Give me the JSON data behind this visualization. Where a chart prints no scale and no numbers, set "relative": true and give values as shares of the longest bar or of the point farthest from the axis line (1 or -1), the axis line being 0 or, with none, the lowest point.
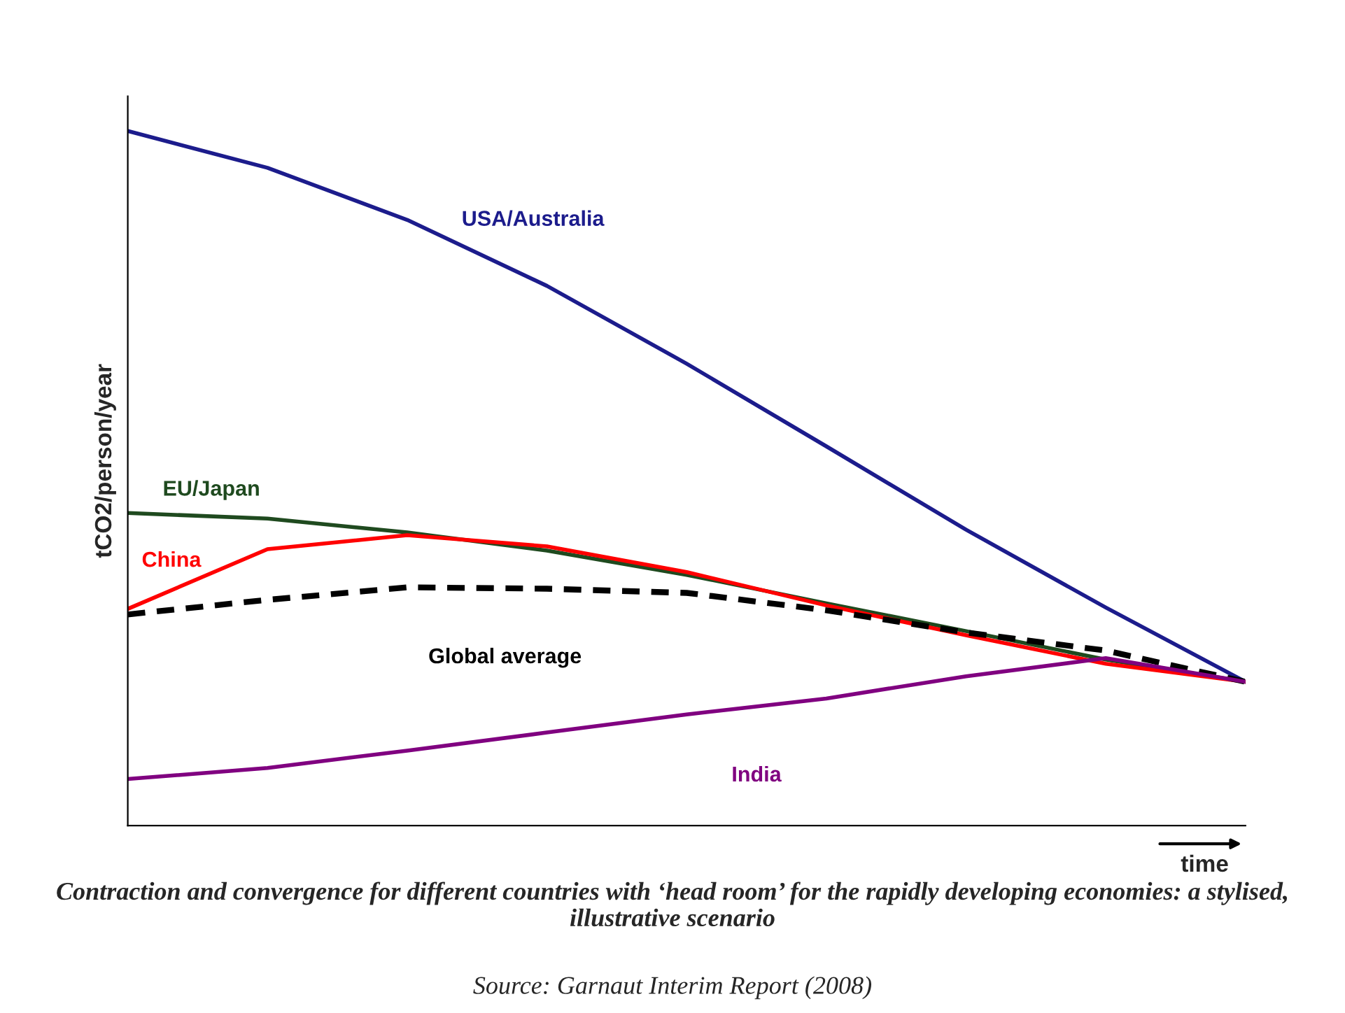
{
  "chart_data": {
    "type": "line",
    "relative": true,
    "ylabel": "tCO2/person/year",
    "xlabel": "time",
    "categories": [
      null,
      null,
      null,
      null,
      null,
      null,
      null,
      null,
      null
    ],
    "series": [
      {
        "name": "USA/Australia",
        "color": "#1c1c8c",
        "values": [
          1,
          0.947,
          0.872,
          0.777,
          0.665,
          0.546,
          0.426,
          0.314,
          0.207
        ]
      },
      {
        "name": "EU/Japan",
        "color": "#1f4a1f",
        "values": [
          0.45,
          0.442,
          0.422,
          0.396,
          0.361,
          0.32,
          0.28,
          0.239,
          0.207
        ]
      },
      {
        "name": "China",
        "color": "#ff0000",
        "values": [
          0.312,
          0.398,
          0.418,
          0.402,
          0.365,
          0.317,
          0.274,
          0.233,
          0.207
        ]
      },
      {
        "name": "Global average",
        "color": "#000000",
        "line_style": "dashed",
        "values": [
          0.304,
          0.325,
          0.343,
          0.341,
          0.335,
          0.31,
          0.278,
          0.252,
          0.207
        ]
      },
      {
        "name": "India",
        "color": "#800080",
        "values": [
          0.067,
          0.083,
          0.108,
          0.134,
          0.16,
          0.183,
          0.215,
          0.241,
          0.207
        ]
      }
    ],
    "annotations": [
      "Contraction and convergence for different countries with ‘head room’ for the rapidly developing economies: a stylised, illustrative scenario",
      "Source: Garnaut Interim Report (2008)"
    ],
    "marker": "none"
  }
}
